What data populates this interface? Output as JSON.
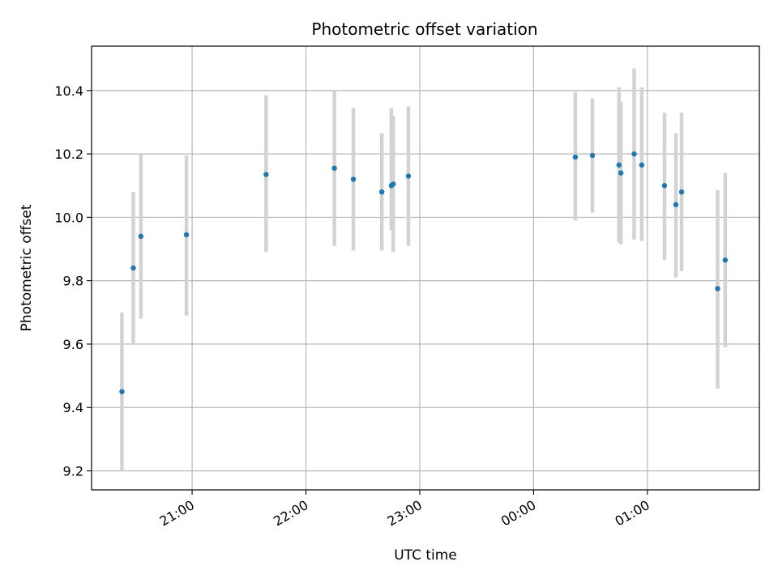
{
  "chart_data": {
    "type": "scatter",
    "title": "Photometric offset variation",
    "xlabel": "UTC time",
    "ylabel": "Photometric offset",
    "grid": true,
    "x_axis_kind": "time",
    "x_range": [
      "20:07",
      "01:59"
    ],
    "ylim": [
      9.14,
      10.54
    ],
    "x_ticks": [
      {
        "time": "21:00",
        "label": "21:00"
      },
      {
        "time": "22:00",
        "label": "22:00"
      },
      {
        "time": "23:00",
        "label": "23:00"
      },
      {
        "time": "00:00",
        "label": "00:00"
      },
      {
        "time": "01:00",
        "label": "01:00"
      }
    ],
    "y_ticks": [
      {
        "value": 9.2,
        "label": "9.2"
      },
      {
        "value": 9.4,
        "label": "9.4"
      },
      {
        "value": 9.6,
        "label": "9.6"
      },
      {
        "value": 9.8,
        "label": "9.8"
      },
      {
        "value": 10.0,
        "label": "10.0"
      },
      {
        "value": 10.2,
        "label": "10.2"
      },
      {
        "value": 10.4,
        "label": "10.4"
      }
    ],
    "point_color": "#1f77b4",
    "errorbar_color": "#d3d3d3",
    "grid_color": "#b0b0b0",
    "points": [
      {
        "time": "20:23",
        "y": 9.45,
        "ylow": 9.2,
        "yhigh": 9.7
      },
      {
        "time": "20:29",
        "y": 9.84,
        "ylow": 9.6,
        "yhigh": 10.08
      },
      {
        "time": "20:33",
        "y": 9.94,
        "ylow": 9.68,
        "yhigh": 10.2
      },
      {
        "time": "20:57",
        "y": 9.945,
        "ylow": 9.69,
        "yhigh": 10.195
      },
      {
        "time": "21:39",
        "y": 10.135,
        "ylow": 9.89,
        "yhigh": 10.385
      },
      {
        "time": "22:15",
        "y": 10.155,
        "ylow": 9.91,
        "yhigh": 10.4
      },
      {
        "time": "22:25",
        "y": 10.12,
        "ylow": 9.895,
        "yhigh": 10.345
      },
      {
        "time": "22:40",
        "y": 10.08,
        "ylow": 9.895,
        "yhigh": 10.265
      },
      {
        "time": "22:45",
        "y": 10.1,
        "ylow": 9.96,
        "yhigh": 10.345
      },
      {
        "time": "22:46",
        "y": 10.105,
        "ylow": 9.89,
        "yhigh": 10.32
      },
      {
        "time": "22:54",
        "y": 10.13,
        "ylow": 9.91,
        "yhigh": 10.35
      },
      {
        "time": "00:22",
        "y": 10.19,
        "ylow": 9.99,
        "yhigh": 10.395
      },
      {
        "time": "00:31",
        "y": 10.195,
        "ylow": 10.015,
        "yhigh": 10.375
      },
      {
        "time": "00:45",
        "y": 10.165,
        "ylow": 9.92,
        "yhigh": 10.41
      },
      {
        "time": "00:46",
        "y": 10.14,
        "ylow": 9.915,
        "yhigh": 10.365
      },
      {
        "time": "00:53",
        "y": 10.2,
        "ylow": 9.93,
        "yhigh": 10.47
      },
      {
        "time": "00:57",
        "y": 10.165,
        "ylow": 9.925,
        "yhigh": 10.41
      },
      {
        "time": "01:09",
        "y": 10.1,
        "ylow": 9.865,
        "yhigh": 10.33
      },
      {
        "time": "01:15",
        "y": 10.04,
        "ylow": 9.81,
        "yhigh": 10.265
      },
      {
        "time": "01:18",
        "y": 10.08,
        "ylow": 9.83,
        "yhigh": 10.33
      },
      {
        "time": "01:37",
        "y": 9.775,
        "ylow": 9.46,
        "yhigh": 10.085
      },
      {
        "time": "01:41",
        "y": 9.865,
        "ylow": 9.59,
        "yhigh": 10.14
      }
    ]
  }
}
